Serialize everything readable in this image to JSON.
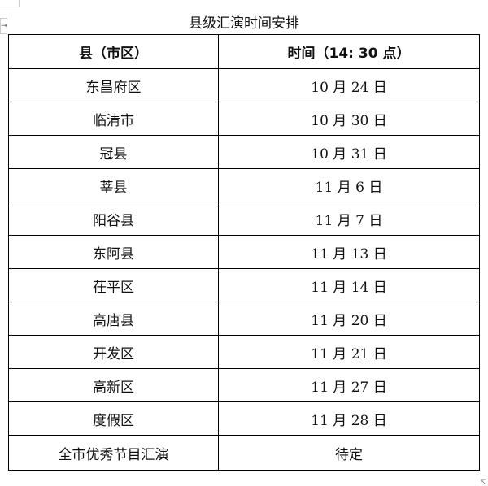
{
  "title": "县级汇演时间安排",
  "headers": [
    "县（市区）",
    "时间（14: 30 点）"
  ],
  "rows": [
    [
      "东昌府区",
      "10 月 24 日"
    ],
    [
      "临清市",
      "10 月 30 日"
    ],
    [
      "冠县",
      "10 月 31 日"
    ],
    [
      "莘县",
      "11 月 6 日"
    ],
    [
      "阳谷县",
      "11 月 7 日"
    ],
    [
      "东阿县",
      "11 月 13 日"
    ],
    [
      "茌平区",
      "11 月 14 日"
    ],
    [
      "高唐县",
      "11 月 20 日"
    ],
    [
      "开发区",
      "11 月 21 日"
    ],
    [
      "高新区",
      "11 月 27 日"
    ],
    [
      "度假区",
      "11 月 28 日"
    ],
    [
      "全市优秀节目汇演",
      "待定"
    ]
  ]
}
